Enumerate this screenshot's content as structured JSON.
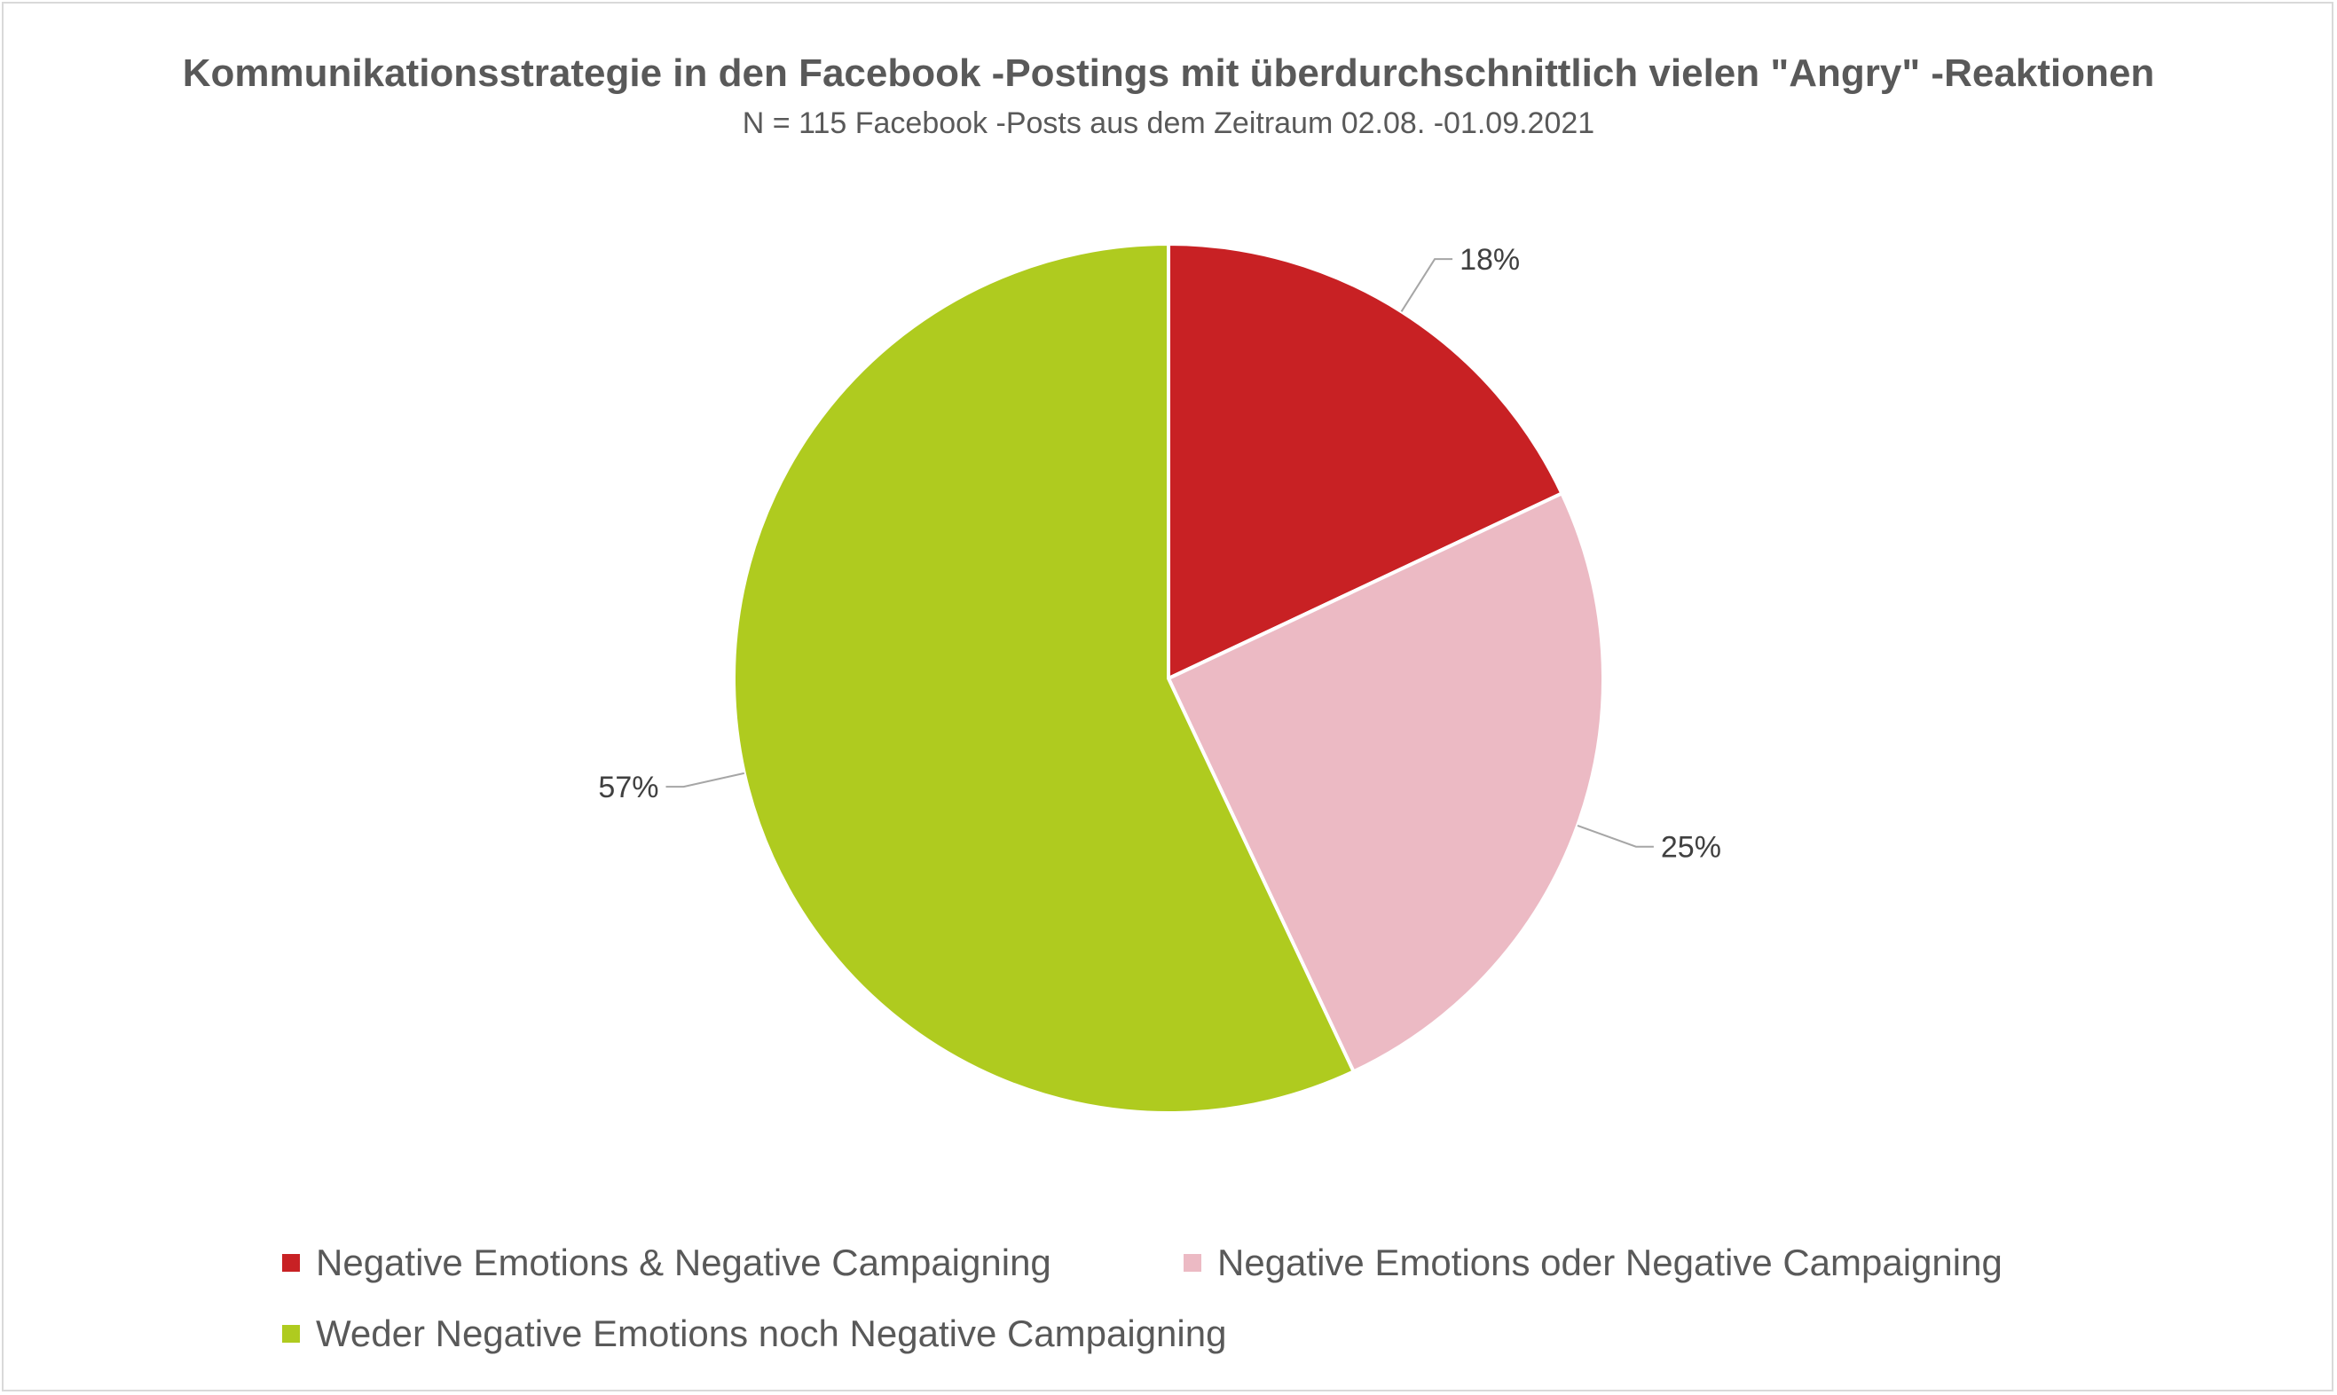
{
  "chart_data": {
    "type": "pie",
    "title": "Kommunikationsstrategie in den Facebook -Postings mit überdurchschnittlich vielen \"Angry\" -Reaktionen",
    "subtitle": "N = 115 Facebook -Posts aus dem Zeitraum 02.08. -01.09.2021",
    "categories": [
      "Negative Emotions & Negative Campaigning",
      "Negative Emotions oder Negative Campaigning",
      "Weder Negative Emotions noch Negative Campaigning"
    ],
    "values": [
      18,
      25,
      57
    ],
    "data_labels": [
      "18%",
      "25%",
      "57%"
    ],
    "colors": [
      "#c82124",
      "#ecbac4",
      "#afcb1f"
    ],
    "legend_position": "bottom"
  }
}
